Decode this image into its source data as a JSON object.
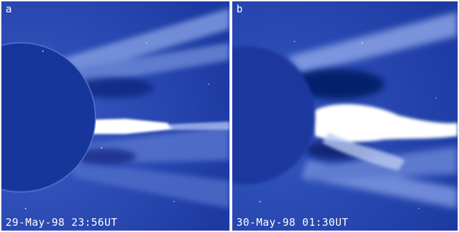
{
  "panels": [
    {
      "letter": "a",
      "timestamp": "29-May-98 23:56UT"
    },
    {
      "letter": "b",
      "timestamp": "30-May-98 01:30UT"
    }
  ],
  "colors": {
    "background_blue": "#1f3fa6",
    "occulter_blue": "#16349a",
    "bright_feature": "#ffffff",
    "dark_region": "#081c6a"
  }
}
